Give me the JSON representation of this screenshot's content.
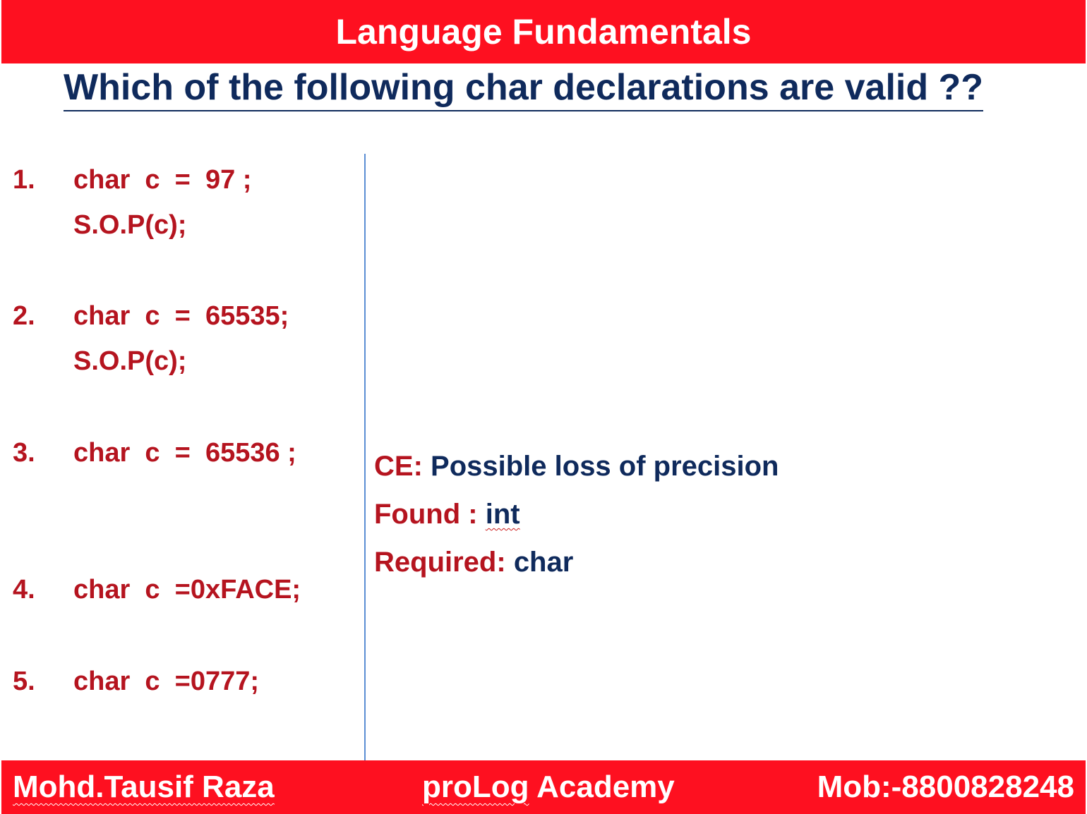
{
  "header": {
    "title": "Language Fundamentals"
  },
  "question": "Which of the following char declarations are valid ??",
  "items": [
    {
      "number": "1.",
      "lines": [
        "char  c  =  97 ;",
        "S.O.P(c);"
      ]
    },
    {
      "number": "2.",
      "lines": [
        "char  c  =  65535;",
        "S.O.P(c);"
      ]
    },
    {
      "number": "3.",
      "lines": [
        "char  c  =  65536 ;"
      ]
    },
    {
      "number": "4.",
      "lines": [
        "char  c  =0xFACE;"
      ]
    },
    {
      "number": "5.",
      "lines": [
        "char  c  =0777;"
      ]
    }
  ],
  "answer": {
    "error_prefix": "CE:",
    "error_message": "Possible loss of precision",
    "found_label": "Found :",
    "found_value": "int",
    "required_label": "Required:",
    "required_value": "char"
  },
  "footer": {
    "author": "Mohd.Tausif Raza",
    "academy_brand": "proLog",
    "academy_suffix": "Academy",
    "mobile": "Mob:-8800828248"
  },
  "colors": {
    "banner_red": "#fe1020",
    "code_red": "#b5141f",
    "navy": "#0f2a5c",
    "divider_blue": "#5b8ed4"
  }
}
